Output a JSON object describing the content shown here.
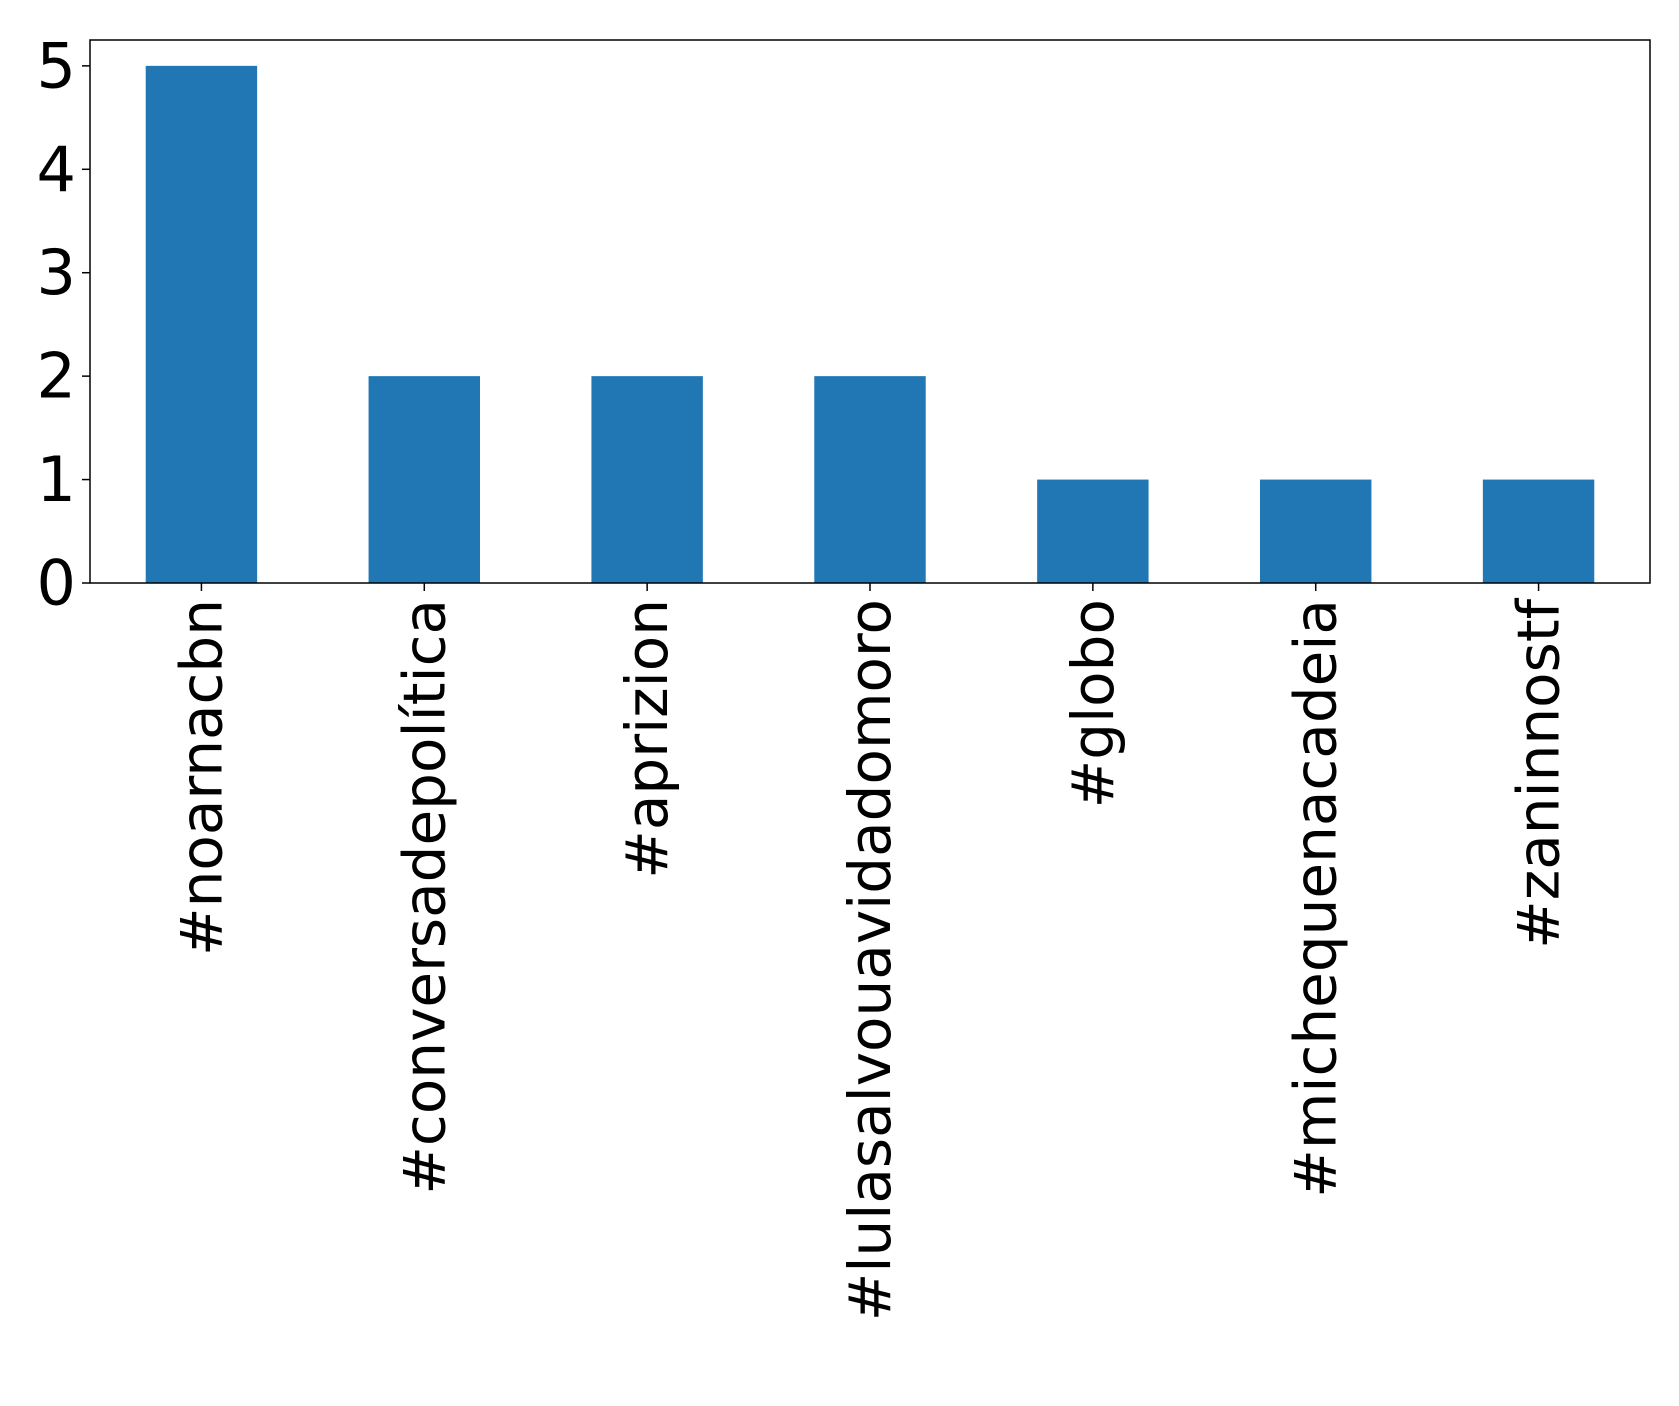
{
  "chart_data": {
    "type": "bar",
    "title": "",
    "xlabel": "",
    "ylabel": "",
    "categories": [
      "#noarnacbn",
      "#conversadepolítica",
      "#aprizion",
      "#lulasalvouavidadomoro",
      "#globo",
      "#michequenacadeia",
      "#zaninnostf"
    ],
    "values": [
      5,
      2,
      2,
      2,
      1,
      1,
      1
    ],
    "ylim": [
      0,
      5.25
    ],
    "yticks": [
      "0",
      "1",
      "2",
      "3",
      "4",
      "5"
    ],
    "grid": false,
    "legend": "none",
    "bar_color": "#2077b4"
  }
}
